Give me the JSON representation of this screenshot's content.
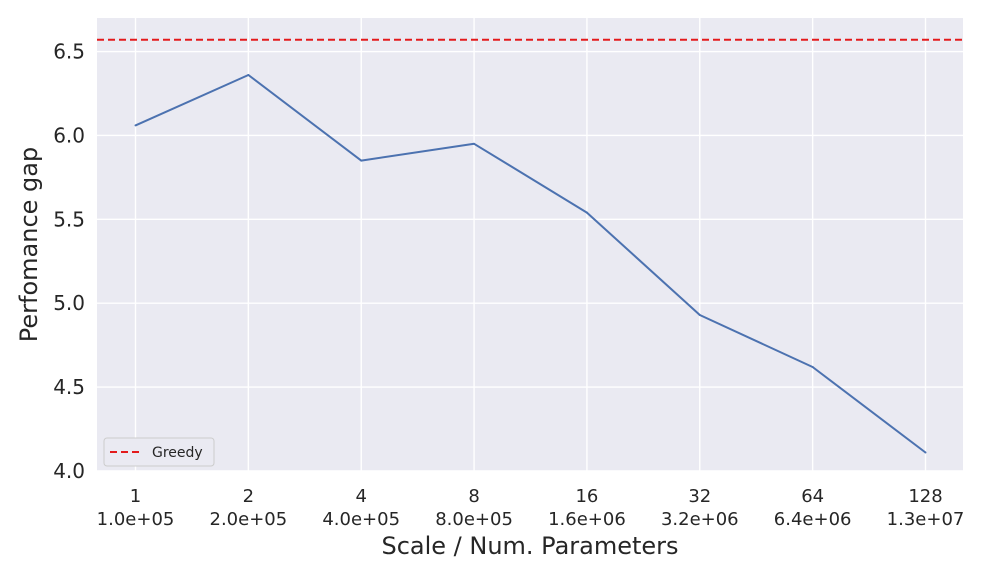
{
  "chart_data": {
    "type": "line",
    "title": "",
    "xlabel": "Scale / Num. Parameters",
    "ylabel": "Perfomance gap",
    "categories": [
      "1",
      "2",
      "4",
      "8",
      "16",
      "32",
      "64",
      "128"
    ],
    "categories_secondary": [
      "1.0e+05",
      "2.0e+05",
      "4.0e+05",
      "8.0e+05",
      "1.6e+06",
      "3.2e+06",
      "6.4e+06",
      "1.3e+07"
    ],
    "series": [
      {
        "values": [
          6.06,
          6.36,
          5.85,
          5.95,
          5.54,
          4.93,
          4.62,
          4.11
        ],
        "color": "#4c72b0",
        "style": "solid"
      },
      {
        "name": "Greedy",
        "type": "hline",
        "value": 6.57,
        "color": "#e31a1c",
        "style": "dashed"
      }
    ],
    "ylim": [
      4.0,
      6.7
    ],
    "yticks": [
      4.0,
      4.5,
      5.0,
      5.5,
      6.0,
      6.5
    ],
    "ytick_labels": [
      "4.0",
      "4.5",
      "5.0",
      "5.5",
      "6.0",
      "6.5"
    ],
    "grid": true,
    "legend": {
      "placement": "lower-left",
      "entries": [
        "Greedy"
      ]
    },
    "colors": {
      "plot_background": "#eaeaf2",
      "grid": "#ffffff",
      "text": "#262626"
    }
  }
}
